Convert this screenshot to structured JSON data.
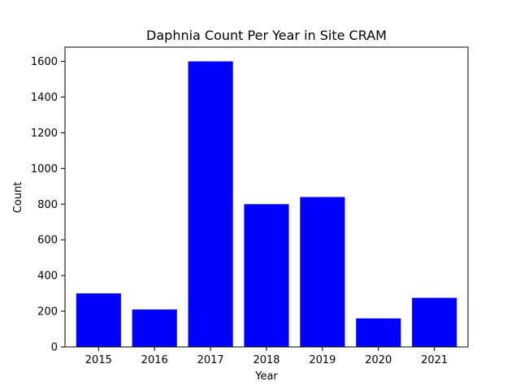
{
  "chart_data": {
    "type": "bar",
    "title": "Daphnia Count Per Year in Site CRAM",
    "xlabel": "Year",
    "ylabel": "Count",
    "categories": [
      "2015",
      "2016",
      "2017",
      "2018",
      "2019",
      "2020",
      "2021"
    ],
    "values": [
      300,
      210,
      1600,
      800,
      840,
      160,
      275
    ],
    "ylim": [
      0,
      1680
    ],
    "yticks": [
      0,
      200,
      400,
      600,
      800,
      1000,
      1200,
      1400,
      1600
    ],
    "grid": false,
    "bar_color": "#0000ff"
  }
}
